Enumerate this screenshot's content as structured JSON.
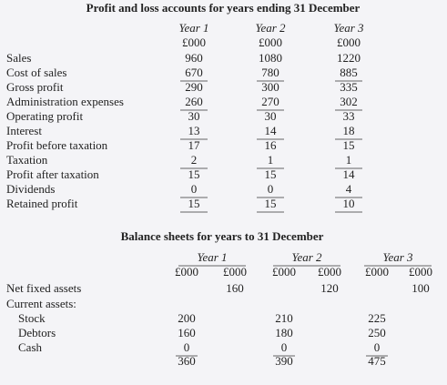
{
  "profit_loss": {
    "title": "Profit and loss accounts for years ending 31 December",
    "years": [
      "Year 1",
      "Year 2",
      "Year 3"
    ],
    "units": [
      "£000",
      "£000",
      "£000"
    ],
    "rows": [
      {
        "label": "Sales",
        "values": [
          960,
          1080,
          1220
        ]
      },
      {
        "label": "Cost of sales",
        "values": [
          670,
          780,
          885
        ]
      },
      {
        "label": "Gross profit",
        "values": [
          290,
          300,
          335
        ]
      },
      {
        "label": "Administration expenses",
        "values": [
          260,
          270,
          302
        ]
      },
      {
        "label": "Operating profit",
        "values": [
          30,
          30,
          33
        ]
      },
      {
        "label": "Interest",
        "values": [
          13,
          14,
          18
        ]
      },
      {
        "label": "Profit before taxation",
        "values": [
          17,
          16,
          15
        ]
      },
      {
        "label": "Taxation",
        "values": [
          2,
          1,
          1
        ]
      },
      {
        "label": "Profit after taxation",
        "values": [
          15,
          15,
          14
        ]
      },
      {
        "label": "Dividends",
        "values": [
          0,
          0,
          4
        ]
      },
      {
        "label": "Retained profit",
        "values": [
          15,
          15,
          10
        ]
      }
    ]
  },
  "balance_sheet": {
    "title": "Balance sheets for years to 31 December",
    "years": [
      "Year 1",
      "Year 2",
      "Year 3"
    ],
    "units": [
      "£000",
      "£000",
      "£000",
      "£000",
      "£000",
      "£000"
    ],
    "fixed_assets": {
      "label": "Net fixed assets",
      "values": [
        160,
        120,
        100
      ]
    },
    "current_assets": {
      "label": "Current assets:",
      "items": [
        {
          "label": "Stock",
          "values": [
            200,
            210,
            225
          ]
        },
        {
          "label": "Debtors",
          "values": [
            160,
            180,
            250
          ]
        },
        {
          "label": "Cash",
          "values": [
            0,
            0,
            0
          ]
        }
      ],
      "totals": [
        360,
        390,
        475
      ]
    }
  }
}
